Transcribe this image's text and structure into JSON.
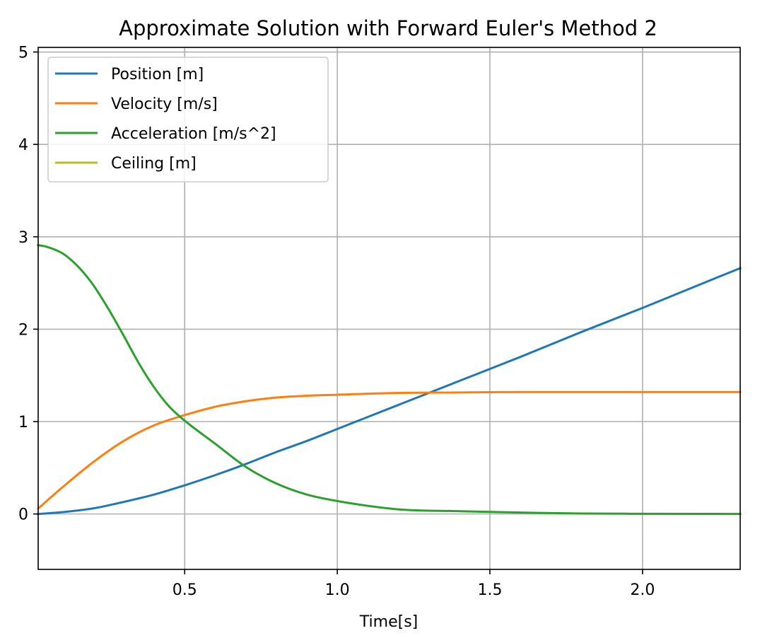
{
  "chart_data": {
    "type": "line",
    "title": "Approximate Solution with Forward Euler's Method 2",
    "xlabel": "Time[s]",
    "ylabel": "",
    "xlim": [
      0.02,
      2.32
    ],
    "ylim": [
      -0.6,
      5.05
    ],
    "xticks": [
      0.5,
      1.0,
      1.5,
      2.0
    ],
    "xtick_labels": [
      "0.5",
      "1.0",
      "1.5",
      "2.0"
    ],
    "yticks": [
      0,
      1,
      2,
      3,
      4,
      5
    ],
    "ytick_labels": [
      "0",
      "1",
      "2",
      "3",
      "4",
      "5"
    ],
    "grid": true,
    "legend_position": "upper-left",
    "series": [
      {
        "name": "Position [m]",
        "color": "#1f77b4",
        "x": [
          0.02,
          0.1,
          0.2,
          0.3,
          0.4,
          0.5,
          0.6,
          0.7,
          0.8,
          0.9,
          1.0,
          1.2,
          1.4,
          1.6,
          1.8,
          2.0,
          2.2,
          2.32
        ],
        "y": [
          0.0,
          0.02,
          0.06,
          0.13,
          0.21,
          0.31,
          0.42,
          0.54,
          0.67,
          0.79,
          0.92,
          1.18,
          1.44,
          1.7,
          1.97,
          2.23,
          2.5,
          2.66
        ]
      },
      {
        "name": "Velocity [m/s]",
        "color": "#ff7f0e",
        "x": [
          0.02,
          0.1,
          0.2,
          0.3,
          0.4,
          0.5,
          0.6,
          0.7,
          0.8,
          0.9,
          1.0,
          1.2,
          1.4,
          1.6,
          1.8,
          2.0,
          2.2,
          2.32
        ],
        "y": [
          0.06,
          0.29,
          0.56,
          0.79,
          0.96,
          1.07,
          1.16,
          1.22,
          1.26,
          1.28,
          1.29,
          1.31,
          1.315,
          1.32,
          1.32,
          1.32,
          1.32,
          1.32
        ]
      },
      {
        "name": "Acceleration [m/s^2]",
        "color": "#2ca02c",
        "x": [
          0.02,
          0.05,
          0.1,
          0.15,
          0.2,
          0.25,
          0.3,
          0.35,
          0.4,
          0.45,
          0.5,
          0.6,
          0.7,
          0.8,
          0.9,
          1.0,
          1.2,
          1.4,
          1.6,
          1.8,
          2.0,
          2.2,
          2.32
        ],
        "y": [
          2.91,
          2.89,
          2.82,
          2.68,
          2.48,
          2.22,
          1.93,
          1.63,
          1.37,
          1.16,
          1.01,
          0.76,
          0.51,
          0.33,
          0.21,
          0.14,
          0.05,
          0.03,
          0.015,
          0.005,
          0.002,
          0.001,
          0.0
        ]
      },
      {
        "name": "Ceiling [m]",
        "color": "#bcbd22",
        "x": [],
        "y": []
      }
    ]
  }
}
